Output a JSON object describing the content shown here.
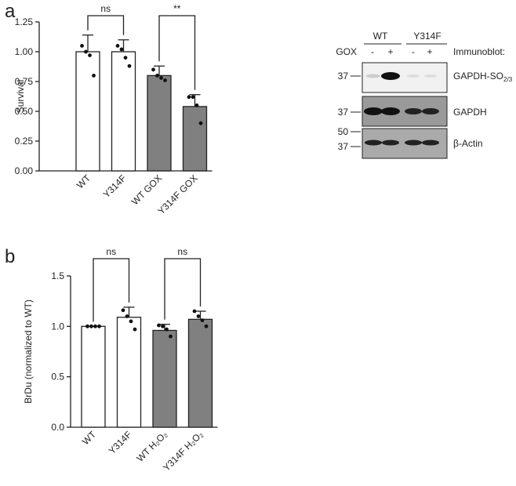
{
  "panels": [
    "a",
    "b"
  ],
  "chart_data": [
    {
      "type": "bar",
      "ylabel": "Survival",
      "categories": [
        "WT",
        "Y314F",
        "WT GOX",
        "Y314F GOX"
      ],
      "values": [
        1.0,
        1.0,
        0.8,
        0.54
      ],
      "errors": [
        0.14,
        0.1,
        0.08,
        0.1
      ],
      "points": [
        [
          1.05,
          1.0,
          0.97,
          0.8
        ],
        [
          1.05,
          1.02,
          0.95,
          0.88
        ],
        [
          0.85,
          0.8,
          0.78,
          0.76
        ],
        [
          0.62,
          0.62,
          0.55,
          0.4
        ]
      ],
      "colors": [
        "#ffffff",
        "#ffffff",
        "#808080",
        "#808080"
      ],
      "ylim": [
        0,
        1.25
      ],
      "yticks": [
        {
          "value": 0,
          "label": "0.00"
        },
        {
          "value": 0.25,
          "label": "0.25"
        },
        {
          "value": 0.5,
          "label": "0.50"
        },
        {
          "value": 0.75,
          "label": "0.75"
        },
        {
          "value": 1,
          "label": "1.00"
        },
        {
          "value": 1.25,
          "label": "1.25"
        }
      ],
      "annotations": [
        {
          "text": "ns",
          "between": [
            "WT",
            "Y314F"
          ]
        },
        {
          "text": "**",
          "between": [
            "WT GOX",
            "Y314F GOX"
          ]
        }
      ]
    },
    {
      "type": "bar",
      "ylabel": "BrDu (normalized to WT)",
      "categories": [
        "WT",
        "Y314F",
        "WT H₂O₂",
        "Y314F H₂O₂"
      ],
      "values": [
        1.0,
        1.09,
        0.96,
        1.07
      ],
      "errors": [
        0.0,
        0.1,
        0.06,
        0.08
      ],
      "points": [
        [
          1.0,
          1.0,
          1.0,
          1.0
        ],
        [
          1.16,
          1.1,
          1.05,
          0.97
        ],
        [
          1.01,
          1.0,
          0.97,
          0.9
        ],
        [
          1.15,
          1.1,
          1.06,
          1.0
        ]
      ],
      "colors": [
        "#ffffff",
        "#ffffff",
        "#808080",
        "#808080"
      ],
      "ylim": [
        0,
        1.5
      ],
      "yticks": [
        {
          "value": 0,
          "label": "0.0"
        },
        {
          "value": 0.5,
          "label": "0.5"
        },
        {
          "value": 1,
          "label": "1.0"
        },
        {
          "value": 1.5,
          "label": "1.5"
        }
      ],
      "annotations": [
        {
          "text": "ns",
          "between": [
            "WT",
            "Y314F"
          ]
        },
        {
          "text": "ns",
          "between": [
            "WT H₂O₂",
            "Y314F H₂O₂"
          ]
        }
      ]
    }
  ],
  "blot": {
    "groups": [
      "WT",
      "Y314F"
    ],
    "treatment_label": "GOX",
    "treatments": [
      "-",
      "+",
      "-",
      "+"
    ],
    "header": "Immunoblot:",
    "markers": [
      "37",
      "37",
      "50",
      "37"
    ],
    "targets": [
      {
        "name": "GAPDH-SO",
        "subscript": "2/3"
      },
      {
        "name": "GAPDH"
      },
      {
        "name": "β-Actin"
      }
    ]
  }
}
